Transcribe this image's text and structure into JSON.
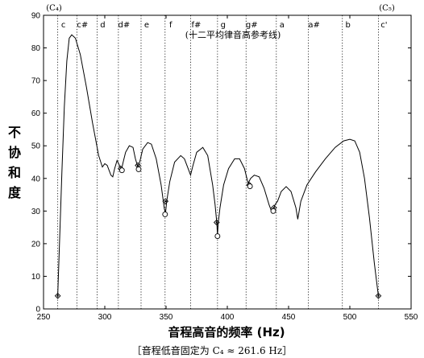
{
  "chart_data": {
    "type": "line",
    "title": "",
    "xlabel": "音程高音的频率 (Hz)",
    "ylabel": [
      "不",
      "协",
      "和",
      "度"
    ],
    "caption": "［音程低音固定为 C₄ ≈ 261.6 Hz］",
    "annotation": "(十二平均律音高参考线)",
    "top_left_marker": "(C₄)",
    "top_right_marker": "(C₅)",
    "xlim": [
      250,
      550
    ],
    "ylim": [
      0,
      90
    ],
    "xticks": [
      250,
      300,
      350,
      400,
      450,
      500,
      550
    ],
    "yticks": [
      0,
      10,
      20,
      30,
      40,
      50,
      60,
      70,
      80,
      90
    ],
    "grid": false,
    "notes": [
      {
        "label": "c",
        "freq": 261.6
      },
      {
        "label": "c#",
        "freq": 277.2
      },
      {
        "label": "d",
        "freq": 293.7
      },
      {
        "label": "d#",
        "freq": 311.1
      },
      {
        "label": "e",
        "freq": 329.6
      },
      {
        "label": "f",
        "freq": 349.2
      },
      {
        "label": "f#",
        "freq": 370.0
      },
      {
        "label": "g",
        "freq": 392.0
      },
      {
        "label": "g#",
        "freq": 415.3
      },
      {
        "label": "a",
        "freq": 440.0
      },
      {
        "label": "a#",
        "freq": 466.2
      },
      {
        "label": "b",
        "freq": 493.9
      },
      {
        "label": "c'",
        "freq": 523.3
      }
    ],
    "curve": [
      [
        261.6,
        4
      ],
      [
        263,
        20
      ],
      [
        265,
        42
      ],
      [
        267,
        62
      ],
      [
        269,
        76
      ],
      [
        271,
        83
      ],
      [
        273,
        84
      ],
      [
        276,
        83
      ],
      [
        280,
        78
      ],
      [
        285,
        68
      ],
      [
        290,
        57
      ],
      [
        295,
        47
      ],
      [
        298,
        43.5
      ],
      [
        300,
        44.5
      ],
      [
        302,
        44
      ],
      [
        305,
        41
      ],
      [
        306.5,
        40.5
      ],
      [
        308,
        43
      ],
      [
        310,
        45.5
      ],
      [
        312,
        44
      ],
      [
        313.5,
        42.5
      ],
      [
        315,
        45
      ],
      [
        317,
        48
      ],
      [
        320,
        50
      ],
      [
        323,
        49.5
      ],
      [
        325,
        46
      ],
      [
        327,
        43.5
      ],
      [
        328.5,
        45
      ],
      [
        331,
        49
      ],
      [
        335,
        51
      ],
      [
        338,
        50.5
      ],
      [
        342,
        46
      ],
      [
        346,
        38
      ],
      [
        348.5,
        31
      ],
      [
        349.5,
        29
      ],
      [
        350.5,
        33
      ],
      [
        353,
        39
      ],
      [
        357,
        45
      ],
      [
        362,
        47
      ],
      [
        365,
        46
      ],
      [
        368,
        43
      ],
      [
        370,
        41
      ],
      [
        372,
        44
      ],
      [
        375,
        48
      ],
      [
        380,
        49.5
      ],
      [
        384,
        47
      ],
      [
        388,
        38
      ],
      [
        390,
        32
      ],
      [
        391.5,
        26
      ],
      [
        392,
        22.5
      ],
      [
        392.5,
        26
      ],
      [
        394,
        31
      ],
      [
        397,
        38
      ],
      [
        401,
        43
      ],
      [
        406,
        46
      ],
      [
        410,
        46
      ],
      [
        414,
        43
      ],
      [
        417,
        38.5
      ],
      [
        419,
        40
      ],
      [
        422,
        41
      ],
      [
        426,
        40.5
      ],
      [
        430,
        37
      ],
      [
        434,
        32
      ],
      [
        436.5,
        29.5
      ],
      [
        437.5,
        30.5
      ],
      [
        439,
        32
      ],
      [
        441,
        33
      ],
      [
        444,
        36
      ],
      [
        448,
        37.5
      ],
      [
        452,
        36
      ],
      [
        456,
        31
      ],
      [
        457.5,
        27.5
      ],
      [
        460,
        33
      ],
      [
        465,
        38
      ],
      [
        472,
        42
      ],
      [
        480,
        46
      ],
      [
        488,
        49.5
      ],
      [
        495,
        51.5
      ],
      [
        500,
        52
      ],
      [
        504,
        51.5
      ],
      [
        508,
        48
      ],
      [
        512,
        40
      ],
      [
        516,
        28
      ],
      [
        520,
        14
      ],
      [
        523.3,
        4
      ]
    ],
    "diamond_markers": [
      [
        261.6,
        4
      ],
      [
        313,
        43
      ],
      [
        327,
        44
      ],
      [
        349.5,
        33
      ],
      [
        391.3,
        26.5
      ],
      [
        418,
        38
      ],
      [
        438,
        31
      ],
      [
        523.3,
        4
      ]
    ],
    "circle_markers": [
      [
        314,
        42.5
      ],
      [
        327.6,
        42.8
      ],
      [
        349.2,
        29
      ],
      [
        392,
        22.3
      ],
      [
        418.5,
        37.6
      ],
      [
        437.5,
        30
      ]
    ]
  }
}
